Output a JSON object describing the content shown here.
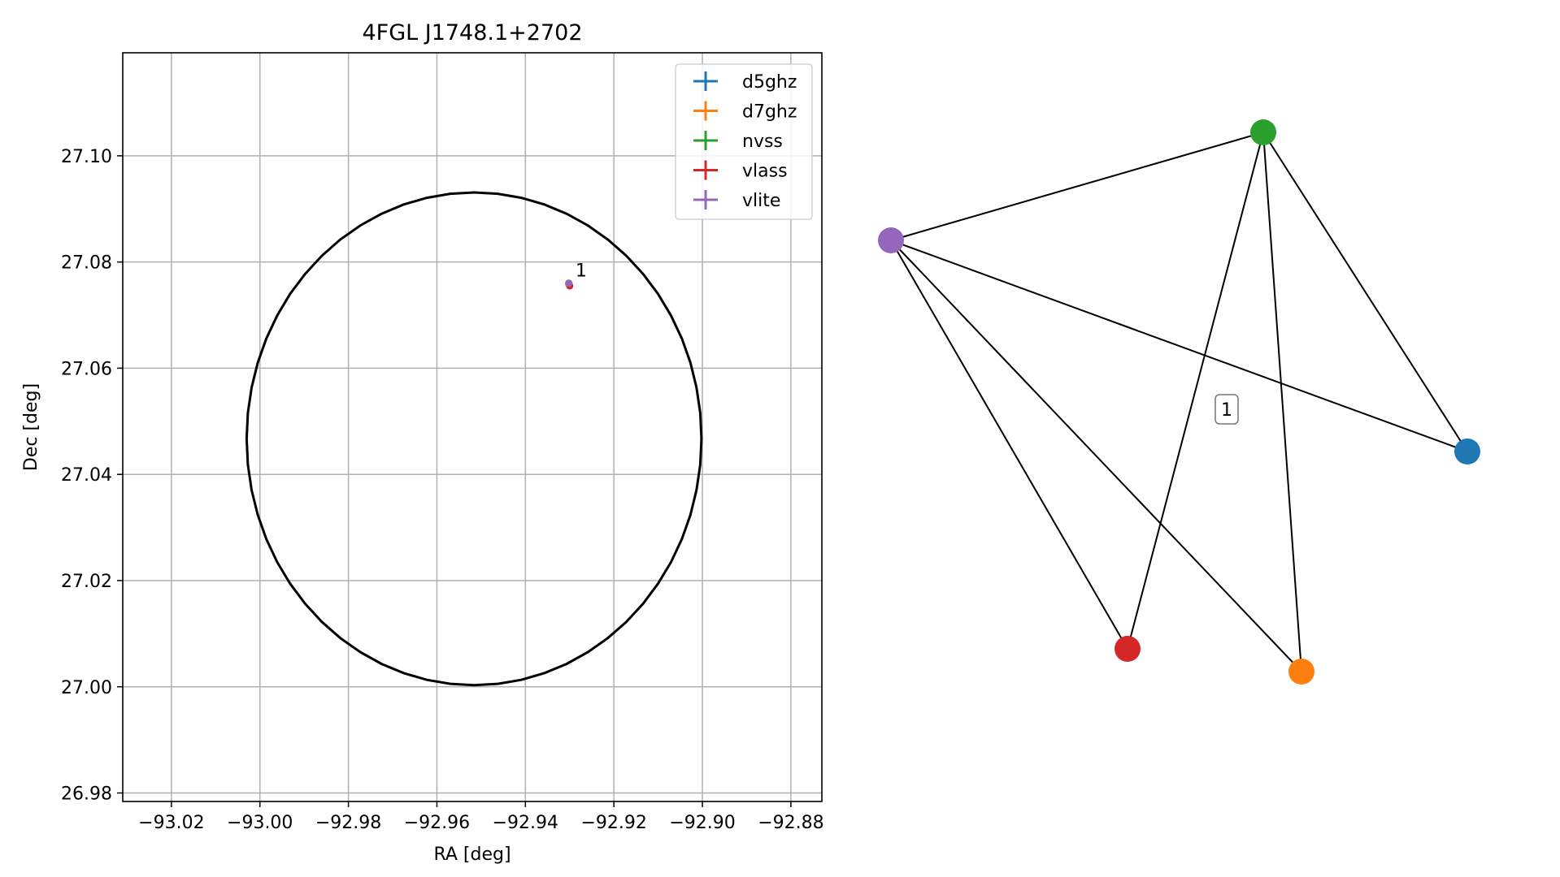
{
  "chart_data": [
    {
      "type": "scatter",
      "title": "4FGL J1748.1+2702",
      "xlabel": "RA [deg]",
      "ylabel": "Dec [deg]",
      "xlim": [
        -93.031,
        -92.873
      ],
      "ylim": [
        26.9784,
        27.1194
      ],
      "xticks": [
        -93.02,
        -93.0,
        -92.98,
        -92.96,
        -92.94,
        -92.92,
        -92.9,
        -92.88
      ],
      "xtick_labels": [
        "−93.02",
        "−93.00",
        "−92.98",
        "−92.96",
        "−92.94",
        "−92.92",
        "−92.90",
        "−92.88"
      ],
      "yticks": [
        26.98,
        27.0,
        27.02,
        27.04,
        27.06,
        27.08,
        27.1
      ],
      "ytick_labels": [
        "26.98",
        "27.00",
        "27.02",
        "27.04",
        "27.06",
        "27.08",
        "27.10"
      ],
      "grid": true,
      "legend_position": "top-right",
      "ellipse": {
        "center": [
          -92.9516,
          27.0467
        ],
        "semi_axis_ra": 0.0514,
        "semi_axis_dec": 0.0464,
        "color": "#000000"
      },
      "series": [
        {
          "name": "d5ghz",
          "color": "#1f77b4",
          "x": [
            -92.9302
          ],
          "y": [
            27.0759
          ]
        },
        {
          "name": "d7ghz",
          "color": "#ff7f0e",
          "x": [
            -92.9302
          ],
          "y": [
            27.0759
          ]
        },
        {
          "name": "nvss",
          "color": "#2ca02c",
          "x": [
            -92.9302
          ],
          "y": [
            27.076
          ]
        },
        {
          "name": "vlass",
          "color": "#d62728",
          "x": [
            -92.93
          ],
          "y": [
            27.0755
          ]
        },
        {
          "name": "vlite",
          "color": "#9467bd",
          "x": [
            -92.9302
          ],
          "y": [
            27.076
          ]
        }
      ],
      "annotations": [
        {
          "text": "1",
          "x": -92.9287,
          "y": 27.0773
        }
      ]
    },
    {
      "type": "network",
      "nodes": [
        {
          "id": "d5ghz",
          "color": "#1f77b4"
        },
        {
          "id": "d7ghz",
          "color": "#ff7f0e"
        },
        {
          "id": "nvss",
          "color": "#2ca02c"
        },
        {
          "id": "vlass",
          "color": "#d62728"
        },
        {
          "id": "vlite",
          "color": "#9467bd"
        }
      ],
      "edges": [
        [
          "vlite",
          "nvss"
        ],
        [
          "vlite",
          "d5ghz"
        ],
        [
          "vlite",
          "vlass"
        ],
        [
          "vlite",
          "d7ghz"
        ],
        [
          "nvss",
          "vlass"
        ],
        [
          "nvss",
          "d7ghz"
        ],
        [
          "nvss",
          "d5ghz"
        ]
      ],
      "group_label": "1"
    }
  ]
}
